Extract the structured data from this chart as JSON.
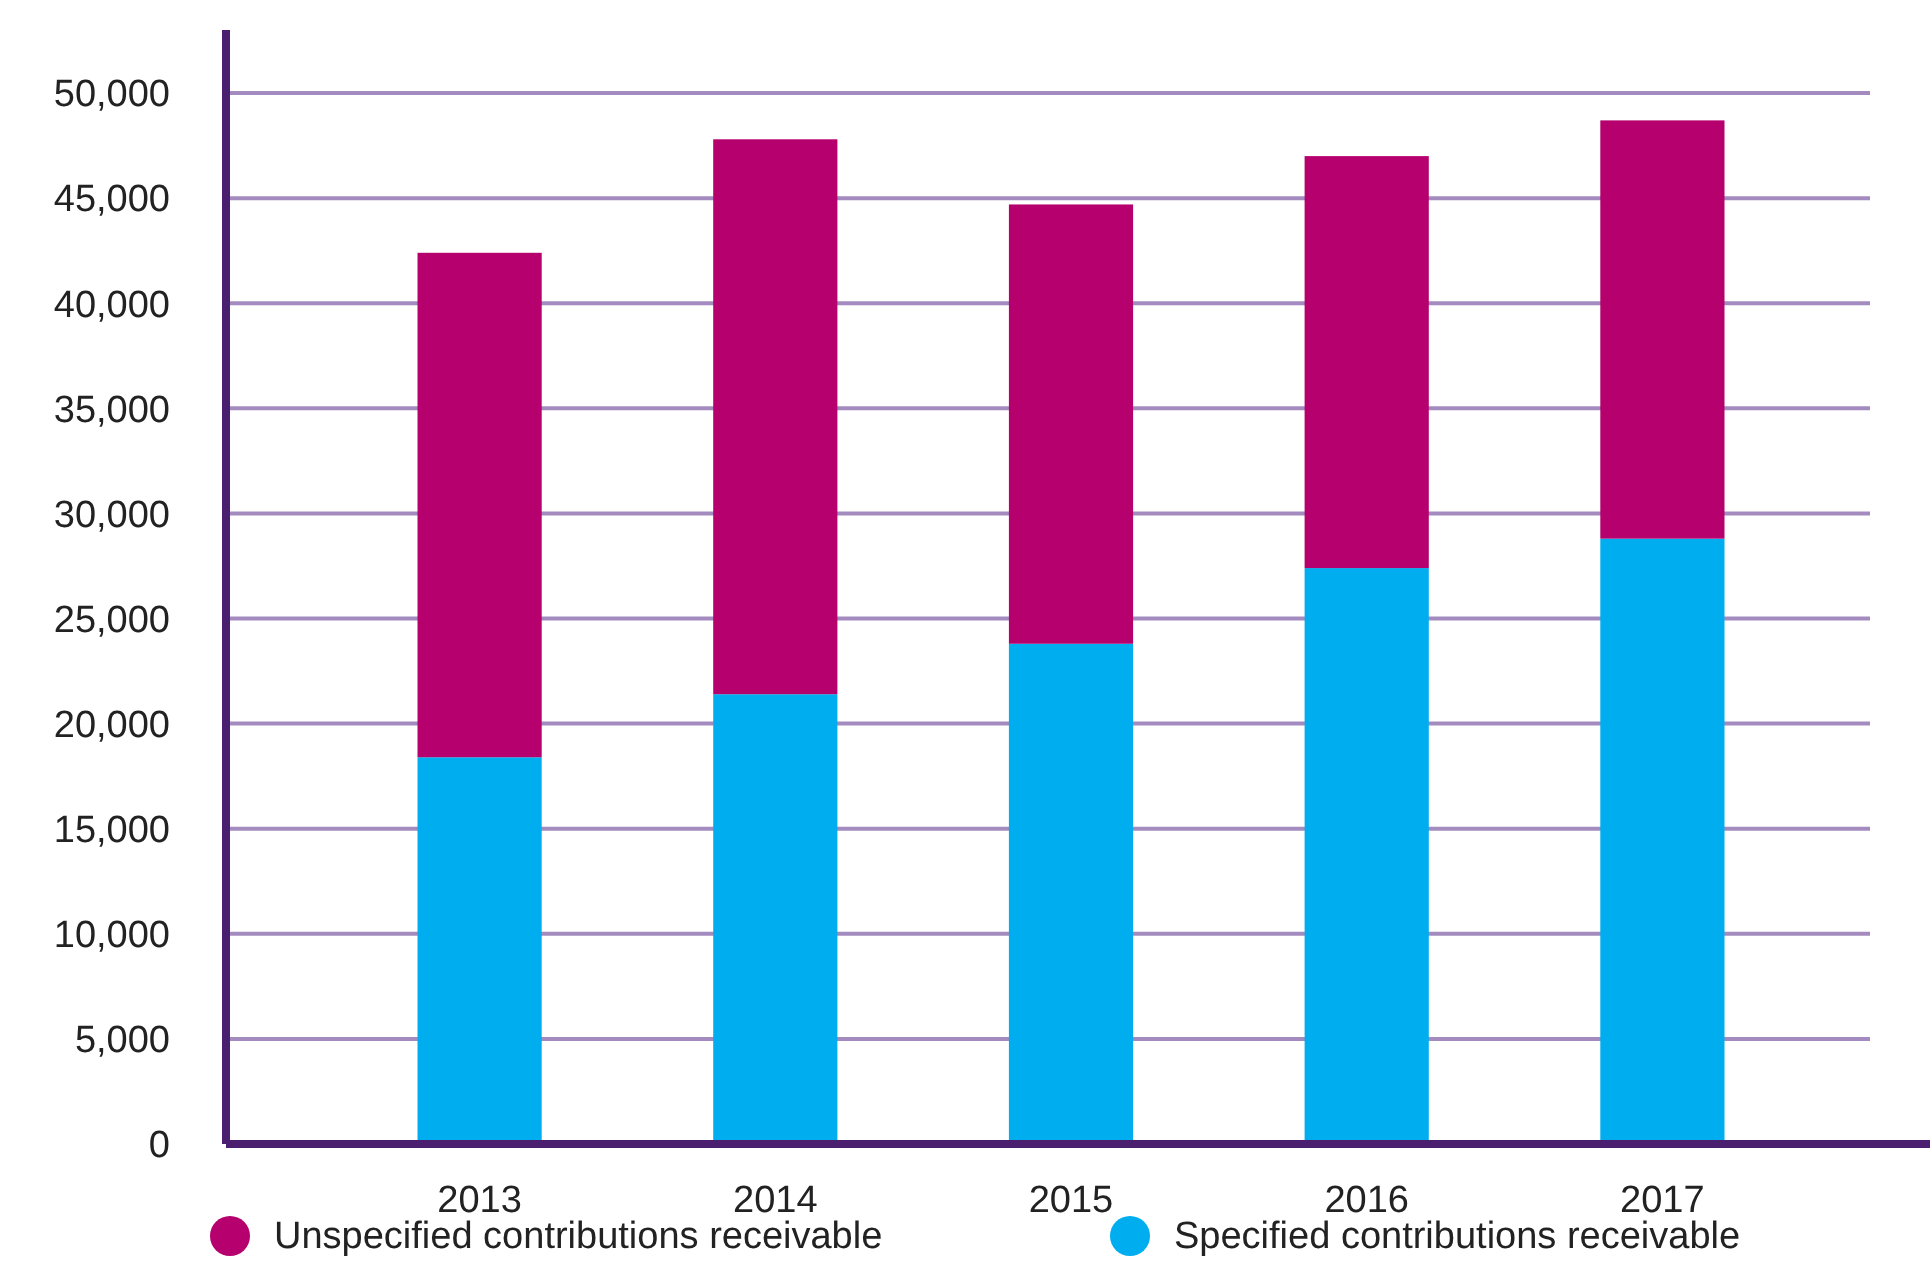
{
  "chart_data": {
    "type": "bar",
    "stacked": true,
    "categories": [
      "2013",
      "2014",
      "2015",
      "2016",
      "2017"
    ],
    "series": [
      {
        "name": "Specified contributions receivable",
        "color": "#00aeef",
        "values": [
          18400,
          21400,
          23800,
          27400,
          28800
        ]
      },
      {
        "name": "Unspecified contributions receivable",
        "color": "#b5006e",
        "values": [
          24000,
          26400,
          20900,
          19600,
          19900
        ]
      }
    ],
    "ylim": [
      0,
      53000
    ],
    "yticks": [
      {
        "value": 0,
        "label": "0"
      },
      {
        "value": 5000,
        "label": "5,000"
      },
      {
        "value": 10000,
        "label": "10,000"
      },
      {
        "value": 15000,
        "label": "15,000"
      },
      {
        "value": 20000,
        "label": "20,000"
      },
      {
        "value": 25000,
        "label": "25,000"
      },
      {
        "value": 30000,
        "label": "30,000"
      },
      {
        "value": 35000,
        "label": "35,000"
      },
      {
        "value": 40000,
        "label": "40,000"
      },
      {
        "value": 45000,
        "label": "45,000"
      },
      {
        "value": 50000,
        "label": "50,000"
      }
    ],
    "grid": "y",
    "legend": "bottom"
  }
}
